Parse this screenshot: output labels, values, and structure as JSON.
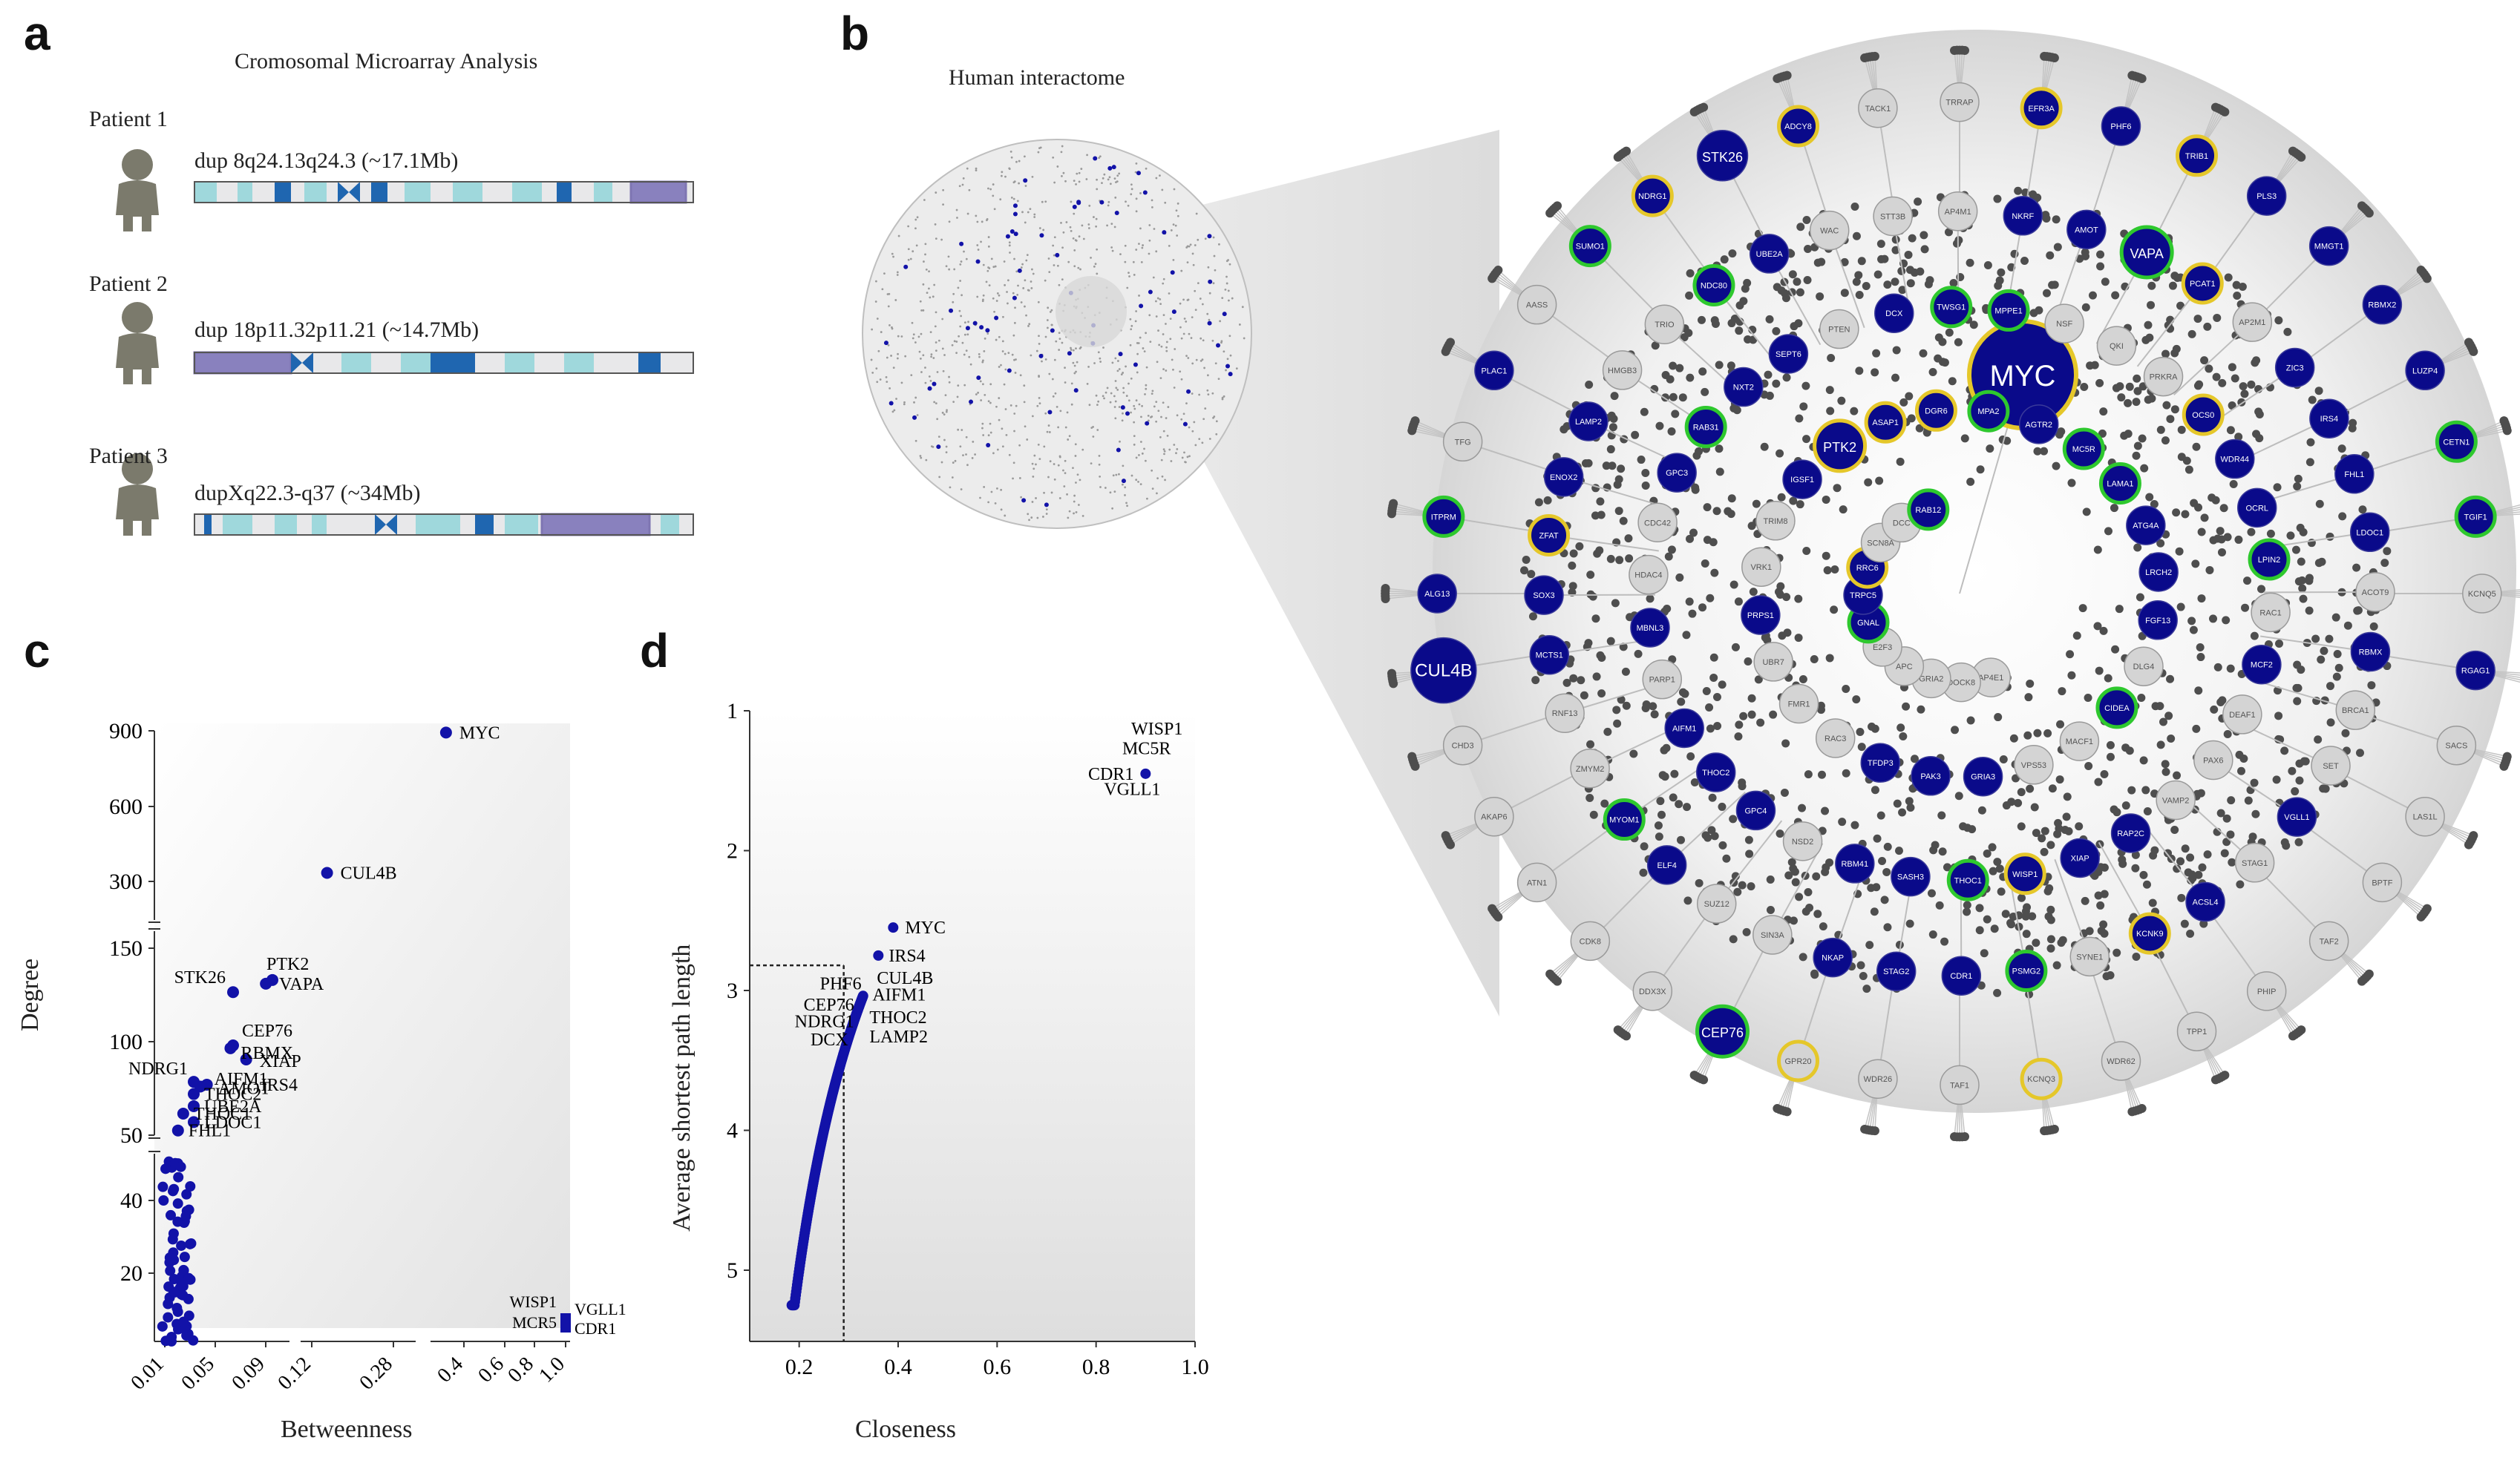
{
  "panels": {
    "a": {
      "letter": "a",
      "title": "Cromosomal Microarray Analysis",
      "patients": [
        {
          "label": "Patient 1",
          "dup": "dup 8q24.13q24.3 (~17.1Mb)"
        },
        {
          "label": "Patient 2",
          "dup": "dup 18p11.32p11.21 (~14.7Mb)"
        },
        {
          "label": "Patient 3",
          "dup": "dupXq22.3-q37 (~34Mb)"
        }
      ]
    },
    "b": {
      "letter": "b",
      "title": "Human interactome",
      "big_node": "MYC",
      "nodes": [
        {
          "id": "KCNQ5",
          "t": "grey",
          "r": ""
        },
        {
          "id": "RGAG1",
          "t": "blue",
          "r": ""
        },
        {
          "id": "SACS",
          "t": "grey",
          "r": ""
        },
        {
          "id": "LAS1L",
          "t": "grey",
          "r": ""
        },
        {
          "id": "BPTF",
          "t": "grey",
          "r": ""
        },
        {
          "id": "TAF2",
          "t": "grey",
          "r": ""
        },
        {
          "id": "PHIP",
          "t": "grey",
          "r": ""
        },
        {
          "id": "TPP1",
          "t": "grey",
          "r": ""
        },
        {
          "id": "WDR62",
          "t": "grey",
          "r": ""
        },
        {
          "id": "KCNQ3",
          "t": "grey",
          "r": "yellow"
        },
        {
          "id": "TAF1",
          "t": "grey",
          "r": ""
        },
        {
          "id": "WDR26",
          "t": "grey",
          "r": ""
        },
        {
          "id": "GPR20",
          "t": "grey",
          "r": "yellow"
        },
        {
          "id": "CEP76",
          "t": "blue",
          "r": "green"
        },
        {
          "id": "DDX3X",
          "t": "grey",
          "r": ""
        },
        {
          "id": "CDK8",
          "t": "grey",
          "r": ""
        },
        {
          "id": "ATN1",
          "t": "grey",
          "r": ""
        },
        {
          "id": "AKAP6",
          "t": "grey",
          "r": ""
        },
        {
          "id": "CHD3",
          "t": "grey",
          "r": ""
        },
        {
          "id": "CUL4B",
          "t": "blue",
          "r": ""
        },
        {
          "id": "ALG13",
          "t": "blue",
          "r": ""
        },
        {
          "id": "ITPRM",
          "t": "blue",
          "r": "green"
        },
        {
          "id": "TFG",
          "t": "grey",
          "r": ""
        },
        {
          "id": "PLAC1",
          "t": "blue",
          "r": ""
        },
        {
          "id": "AASS",
          "t": "grey",
          "r": ""
        },
        {
          "id": "SUMO1",
          "t": "blue",
          "r": "green"
        },
        {
          "id": "NDRG1",
          "t": "blue",
          "r": "yellow"
        },
        {
          "id": "STK26",
          "t": "blue",
          "r": ""
        },
        {
          "id": "ADCY8",
          "t": "blue",
          "r": "yellow"
        },
        {
          "id": "TACK1",
          "t": "grey",
          "r": ""
        },
        {
          "id": "TRRAP",
          "t": "grey",
          "r": ""
        },
        {
          "id": "EFR3A",
          "t": "blue",
          "r": "yellow"
        },
        {
          "id": "PHF6",
          "t": "blue",
          "r": ""
        },
        {
          "id": "TRIB1",
          "t": "blue",
          "r": "yellow"
        },
        {
          "id": "PLS3",
          "t": "blue",
          "r": ""
        },
        {
          "id": "MMGT1",
          "t": "blue",
          "r": ""
        },
        {
          "id": "RBMX2",
          "t": "blue",
          "r": ""
        },
        {
          "id": "LUZP4",
          "t": "blue",
          "r": ""
        },
        {
          "id": "CETN1",
          "t": "blue",
          "r": "green"
        },
        {
          "id": "TGIF1",
          "t": "blue",
          "r": "green"
        },
        {
          "id": "BRCA1",
          "t": "grey",
          "r": ""
        },
        {
          "id": "SET",
          "t": "grey",
          "r": ""
        },
        {
          "id": "VGLL1",
          "t": "blue",
          "r": ""
        },
        {
          "id": "STAG1",
          "t": "grey",
          "r": ""
        },
        {
          "id": "ACSL4",
          "t": "blue",
          "r": ""
        },
        {
          "id": "KCNK9",
          "t": "blue",
          "r": "yellow"
        },
        {
          "id": "SYNE1",
          "t": "grey",
          "r": ""
        },
        {
          "id": "PSMG2",
          "t": "blue",
          "r": "green"
        },
        {
          "id": "CDR1",
          "t": "blue",
          "r": ""
        },
        {
          "id": "STAG2",
          "t": "blue",
          "r": ""
        },
        {
          "id": "NKAP",
          "t": "blue",
          "r": ""
        },
        {
          "id": "SIN3A",
          "t": "grey",
          "r": ""
        },
        {
          "id": "SUZ12",
          "t": "grey",
          "r": ""
        },
        {
          "id": "ELF4",
          "t": "blue",
          "r": ""
        },
        {
          "id": "MYOM1",
          "t": "blue",
          "r": "green"
        },
        {
          "id": "ZMYM2",
          "t": "grey",
          "r": ""
        },
        {
          "id": "RNF13",
          "t": "grey",
          "r": ""
        },
        {
          "id": "MCTS1",
          "t": "blue",
          "r": ""
        },
        {
          "id": "SOX3",
          "t": "blue",
          "r": ""
        },
        {
          "id": "ZFAT",
          "t": "blue",
          "r": "yellow"
        },
        {
          "id": "ENOX2",
          "t": "blue",
          "r": ""
        },
        {
          "id": "LAMP2",
          "t": "blue",
          "r": ""
        },
        {
          "id": "HMGB3",
          "t": "grey",
          "r": ""
        },
        {
          "id": "TRIO",
          "t": "grey",
          "r": ""
        },
        {
          "id": "NDC80",
          "t": "blue",
          "r": "green"
        },
        {
          "id": "UBE2A",
          "t": "blue",
          "r": ""
        },
        {
          "id": "WAC",
          "t": "grey",
          "r": ""
        },
        {
          "id": "STT3B",
          "t": "grey",
          "r": ""
        },
        {
          "id": "AP4M1",
          "t": "grey",
          "r": ""
        },
        {
          "id": "NKRF",
          "t": "blue",
          "r": ""
        },
        {
          "id": "AMOT",
          "t": "blue",
          "r": ""
        },
        {
          "id": "VAPA",
          "t": "blue",
          "r": "green"
        },
        {
          "id": "PCAT1",
          "t": "blue",
          "r": "yellow"
        },
        {
          "id": "AP2M1",
          "t": "grey",
          "r": ""
        },
        {
          "id": "ZIC3",
          "t": "blue",
          "r": ""
        },
        {
          "id": "IRS4",
          "t": "blue",
          "r": ""
        },
        {
          "id": "FHL1",
          "t": "blue",
          "r": ""
        },
        {
          "id": "LDOC1",
          "t": "blue",
          "r": ""
        },
        {
          "id": "ACOT9",
          "t": "grey",
          "r": ""
        },
        {
          "id": "RBMX",
          "t": "blue",
          "r": ""
        },
        {
          "id": "PAX6",
          "t": "grey",
          "r": ""
        },
        {
          "id": "VAMP2",
          "t": "grey",
          "r": ""
        },
        {
          "id": "RAP2C",
          "t": "blue",
          "r": ""
        },
        {
          "id": "XIAP",
          "t": "blue",
          "r": ""
        },
        {
          "id": "WISP1",
          "t": "blue",
          "r": "yellow"
        },
        {
          "id": "THOC1",
          "t": "blue",
          "r": "green"
        },
        {
          "id": "SASH3",
          "t": "blue",
          "r": ""
        },
        {
          "id": "RBM41",
          "t": "blue",
          "r": ""
        },
        {
          "id": "NSD2",
          "t": "grey",
          "r": ""
        },
        {
          "id": "GPC4",
          "t": "blue",
          "r": ""
        },
        {
          "id": "THOC2",
          "t": "blue",
          "r": ""
        },
        {
          "id": "AIFM1",
          "t": "blue",
          "r": ""
        },
        {
          "id": "PARP1",
          "t": "grey",
          "r": ""
        },
        {
          "id": "MBNL3",
          "t": "blue",
          "r": ""
        },
        {
          "id": "HDAC4",
          "t": "grey",
          "r": ""
        },
        {
          "id": "CDC42",
          "t": "grey",
          "r": ""
        },
        {
          "id": "GPC3",
          "t": "blue",
          "r": ""
        },
        {
          "id": "RAB31",
          "t": "blue",
          "r": "green"
        },
        {
          "id": "NXT2",
          "t": "blue",
          "r": ""
        },
        {
          "id": "SEPT6",
          "t": "blue",
          "r": ""
        },
        {
          "id": "PTEN",
          "t": "grey",
          "r": ""
        },
        {
          "id": "DCX",
          "t": "blue",
          "r": ""
        },
        {
          "id": "TWSG1",
          "t": "blue",
          "r": "green"
        },
        {
          "id": "MPPE1",
          "t": "blue",
          "r": "green"
        },
        {
          "id": "NSF",
          "t": "grey",
          "r": ""
        },
        {
          "id": "QKI",
          "t": "grey",
          "r": ""
        },
        {
          "id": "PRKRA",
          "t": "grey",
          "r": ""
        },
        {
          "id": "OCS0",
          "t": "blue",
          "r": "yellow"
        },
        {
          "id": "WDR44",
          "t": "blue",
          "r": ""
        },
        {
          "id": "OCRL",
          "t": "blue",
          "r": ""
        },
        {
          "id": "LPIN2",
          "t": "blue",
          "r": "green"
        },
        {
          "id": "RAC1",
          "t": "grey",
          "r": ""
        },
        {
          "id": "MCF2",
          "t": "blue",
          "r": ""
        },
        {
          "id": "DEAF1",
          "t": "grey",
          "r": ""
        },
        {
          "id": "MACF1",
          "t": "grey",
          "r": ""
        },
        {
          "id": "VPS53",
          "t": "grey",
          "r": ""
        },
        {
          "id": "GRIA3",
          "t": "blue",
          "r": ""
        },
        {
          "id": "PAK3",
          "t": "blue",
          "r": ""
        },
        {
          "id": "TFDP3",
          "t": "blue",
          "r": ""
        },
        {
          "id": "RAC3",
          "t": "grey",
          "r": ""
        },
        {
          "id": "FMR1",
          "t": "grey",
          "r": ""
        },
        {
          "id": "UBR7",
          "t": "grey",
          "r": ""
        },
        {
          "id": "PRPS1",
          "t": "blue",
          "r": ""
        },
        {
          "id": "VRK1",
          "t": "grey",
          "r": ""
        },
        {
          "id": "TRIM8",
          "t": "grey",
          "r": ""
        },
        {
          "id": "IGSF1",
          "t": "blue",
          "r": ""
        },
        {
          "id": "PTK2",
          "t": "blue",
          "r": "yellow"
        },
        {
          "id": "ASAP1",
          "t": "blue",
          "r": "yellow"
        },
        {
          "id": "DGR6",
          "t": "blue",
          "r": "yellow"
        },
        {
          "id": "MPA2",
          "t": "blue",
          "r": "green"
        },
        {
          "id": "AGTR2",
          "t": "blue",
          "r": ""
        },
        {
          "id": "MC5R",
          "t": "blue",
          "r": "green"
        },
        {
          "id": "LAMA1",
          "t": "blue",
          "r": "green"
        },
        {
          "id": "ATG4A",
          "t": "blue",
          "r": ""
        },
        {
          "id": "LRCH2",
          "t": "blue",
          "r": ""
        },
        {
          "id": "FGF13",
          "t": "blue",
          "r": ""
        },
        {
          "id": "DLG4",
          "t": "grey",
          "r": ""
        },
        {
          "id": "CIDEA",
          "t": "blue",
          "r": "green"
        },
        {
          "id": "AP4E1",
          "t": "grey",
          "r": ""
        },
        {
          "id": "DOCK8",
          "t": "grey",
          "r": ""
        },
        {
          "id": "GRIA2",
          "t": "grey",
          "r": ""
        },
        {
          "id": "APC",
          "t": "grey",
          "r": ""
        },
        {
          "id": "E2F3",
          "t": "grey",
          "r": ""
        },
        {
          "id": "GNAL",
          "t": "blue",
          "r": "green"
        },
        {
          "id": "TRPC5",
          "t": "blue",
          "r": ""
        },
        {
          "id": "RRC6",
          "t": "blue",
          "r": "yellow"
        },
        {
          "id": "SCN8A",
          "t": "grey",
          "r": ""
        },
        {
          "id": "DCC",
          "t": "grey",
          "r": ""
        },
        {
          "id": "RAB12",
          "t": "blue",
          "r": "green"
        }
      ]
    },
    "c": {
      "letter": "c",
      "ylabel": "Degree",
      "xlabel": "Betweenness",
      "yticks_top": [
        "900",
        "600",
        "300"
      ],
      "yticks_mid": [
        "150",
        "100",
        "50"
      ],
      "yticks_low": [
        "40",
        "20"
      ],
      "xticks": [
        "0.01",
        "0.05",
        "0.09",
        "0.12",
        "0.28",
        "0.4",
        "0.6",
        "0.8",
        "1.0"
      ],
      "point_labels": {
        "myc": "MYC",
        "cul4b": "CUL4B",
        "stk26": "STK26",
        "ptk2": "PTK2",
        "vapa": "VAPA",
        "cep76": "CEP76",
        "rbmx": "RBMX",
        "xiap": "XIAP",
        "irs4": "IRS4",
        "ndrg1": "NDRG1",
        "aifm1": "AIFM1",
        "amot": "AMOT",
        "thoc2": "THOC2",
        "ube2a": "UBE2A",
        "thoc1": "THOC1",
        "ldoc1": "LDOC1",
        "fhl1": "FHL1",
        "wisp1": "WISP1",
        "vgll1": "VGLL1",
        "mcr5": "MCR5",
        "cdr1": "CDR1"
      }
    },
    "d": {
      "letter": "d",
      "ylabel": "Average shortest path length",
      "xlabel": "Closeness",
      "yticks": [
        "1",
        "2",
        "3",
        "4",
        "5"
      ],
      "xticks": [
        "0.2",
        "0.4",
        "0.6",
        "0.8",
        "1.0"
      ],
      "point_labels": {
        "wisp1": "WISP1",
        "mc5r": "MC5R",
        "cdr1": "CDR1",
        "vgll1": "VGLL1",
        "myc": "MYC",
        "irs4": "IRS4",
        "cul4b": "CUL4B",
        "phf6": "PHF6",
        "aifm1": "AIFM1",
        "cep76": "CEP76",
        "ndrg1": "NDRG1",
        "thoc2": "THOC2",
        "dcx": "DCX",
        "lamp2": "LAMP2"
      }
    }
  },
  "chart_data": [
    {
      "type": "scatter",
      "xlabel": "Betweenness",
      "ylabel": "Degree",
      "points": [
        {
          "label": "MYC",
          "x": 0.5,
          "y": 893
        },
        {
          "label": "CUL4B",
          "x": 0.15,
          "y": 334
        },
        {
          "label": "PTK2",
          "x": 0.09,
          "y": 216
        },
        {
          "label": "VAPA",
          "x": 0.085,
          "y": 212
        },
        {
          "label": "STK26",
          "x": 0.06,
          "y": 203
        },
        {
          "label": "CEP76",
          "x": 0.06,
          "y": 146
        },
        {
          "label": "RBMX",
          "x": 0.058,
          "y": 143
        },
        {
          "label": "XIAP",
          "x": 0.07,
          "y": 131
        },
        {
          "label": "NDRG1",
          "x": 0.03,
          "y": 107
        },
        {
          "label": "AIFM1",
          "x": 0.04,
          "y": 104
        },
        {
          "label": "AMOT",
          "x": 0.035,
          "y": 102
        },
        {
          "label": "THOC2",
          "x": 0.03,
          "y": 94
        },
        {
          "label": "UBE2A",
          "x": 0.03,
          "y": 81
        },
        {
          "label": "THOC1",
          "x": 0.022,
          "y": 73
        },
        {
          "label": "LDOC1",
          "x": 0.03,
          "y": 64
        },
        {
          "label": "FHL1",
          "x": 0.018,
          "y": 55
        },
        {
          "label": "WISP1",
          "x": 1.0,
          "y": 3
        },
        {
          "label": "VGLL1",
          "x": 1.0,
          "y": 3
        },
        {
          "label": "MCR5",
          "x": 1.0,
          "y": 2
        },
        {
          "label": "CDR1",
          "x": 1.0,
          "y": 2
        }
      ]
    },
    {
      "type": "scatter",
      "xlabel": "Closeness",
      "ylabel": "Average shortest path length",
      "xlim": [
        0.1,
        1.0
      ],
      "ylim": [
        1,
        5.5
      ],
      "points": [
        {
          "label": "WISP1",
          "x": 0.9,
          "y": 1.5
        },
        {
          "label": "MC5R",
          "x": 0.9,
          "y": 1.5
        },
        {
          "label": "CDR1",
          "x": 0.9,
          "y": 1.5
        },
        {
          "label": "VGLL1",
          "x": 0.9,
          "y": 1.5
        },
        {
          "label": "MYC",
          "x": 0.39,
          "y": 2.55
        },
        {
          "label": "IRS4",
          "x": 0.36,
          "y": 2.75
        },
        {
          "label": "CUL4B",
          "x": 0.34,
          "y": 2.9
        },
        {
          "label": "PHF6",
          "x": 0.33,
          "y": 2.95
        },
        {
          "label": "AIFM1",
          "x": 0.33,
          "y": 3.0
        },
        {
          "label": "CEP76",
          "x": 0.33,
          "y": 3.02
        },
        {
          "label": "NDRG1",
          "x": 0.32,
          "y": 3.05
        },
        {
          "label": "THOC2",
          "x": 0.32,
          "y": 3.08
        },
        {
          "label": "DCX",
          "x": 0.32,
          "y": 3.1
        },
        {
          "label": "LAMP2",
          "x": 0.32,
          "y": 3.12
        }
      ]
    }
  ]
}
